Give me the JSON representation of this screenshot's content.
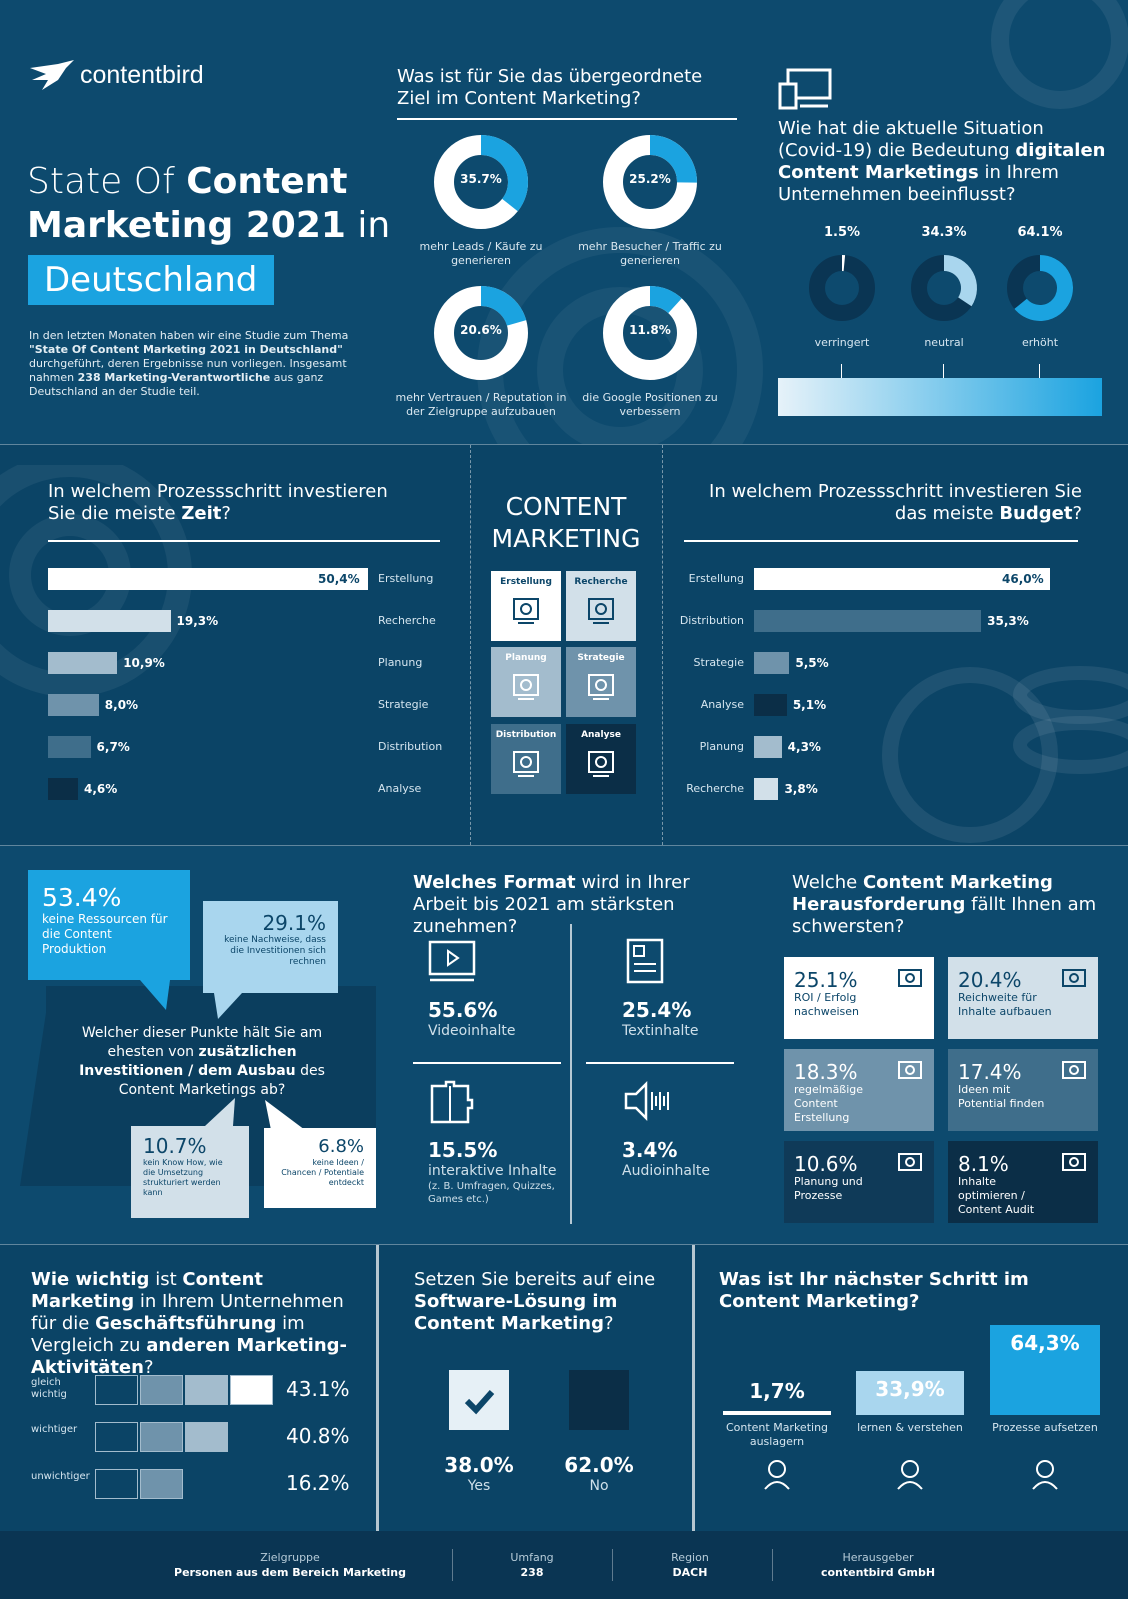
{
  "brand": {
    "name": "contentbird"
  },
  "hero": {
    "title_light": "State Of",
    "title_bold_1": "Content",
    "title_bold_2": "Marketing 2021",
    "title_light_2": "in",
    "title_box": "Deutschland",
    "intro_1": "In den letzten Monaten haben wir eine Studie zum Thema",
    "intro_bold": "\"State Of Content Marketing 2021 in Deutschland\"",
    "intro_2": "durchgeführt, deren Ergebnisse nun vorliegen. Insgesamt nahmen",
    "intro_bold_2": "238 Marketing-Verantwortliche",
    "intro_3": "aus ganz Deutschland an der Studie teil."
  },
  "goal": {
    "question": "Was ist für Sie das übergeordnete Ziel im Content Marketing?",
    "donuts": [
      {
        "value": "35.7%",
        "fraction": 0.357,
        "label": "mehr Leads / Käufe zu generieren"
      },
      {
        "value": "25.2%",
        "fraction": 0.252,
        "label": "mehr Besucher / Traffic zu generieren"
      },
      {
        "value": "20.6%",
        "fraction": 0.206,
        "label": "mehr Vertrauen / Reputation in der Zielgruppe aufzubauen"
      },
      {
        "value": "11.8%",
        "fraction": 0.118,
        "label": "die Google Positionen zu verbessern"
      }
    ]
  },
  "covid": {
    "q_1": "Wie hat die aktuelle Situation (Covid-19) die Bedeutung",
    "q_bold": "digitalen Content Marketings",
    "q_2": "in Ihrem Unternehmen beeinflusst?",
    "items": [
      {
        "value": "1.5%",
        "fraction": 0.015,
        "label": "verringert",
        "color": "#ffffff"
      },
      {
        "value": "34.3%",
        "fraction": 0.343,
        "label": "neutral",
        "color": "#a9d6ee"
      },
      {
        "value": "64.1%",
        "fraction": 0.641,
        "label": "erhöht",
        "color": "#1ba3e0"
      }
    ]
  },
  "time": {
    "q_1": "In welchem Prozessschritt investieren Sie die meiste",
    "q_bold": "Zeit",
    "q_end": "?",
    "bars": [
      {
        "value": "50,4%",
        "num": 50.4,
        "label": "Erstellung",
        "color": "#ffffff"
      },
      {
        "value": "19,3%",
        "num": 19.3,
        "label": "Recherche",
        "color": "#d2e0e9"
      },
      {
        "value": "10,9%",
        "num": 10.9,
        "label": "Planung",
        "color": "#a3bccd"
      },
      {
        "value": "8,0%",
        "num": 8.0,
        "label": "Strategie",
        "color": "#6f93ab"
      },
      {
        "value": "6,7%",
        "num": 6.7,
        "label": "Distribution",
        "color": "#3f6e8b"
      },
      {
        "value": "4,6%",
        "num": 4.6,
        "label": "Analyse",
        "color": "#0b2e47"
      }
    ]
  },
  "center": {
    "title_1": "CONTENT",
    "title_2": "MARKETING",
    "tiles": [
      {
        "label": "Erstellung",
        "icon": "hand-lightbulb-icon",
        "bg": "#ffffff",
        "fg": "#0c4669"
      },
      {
        "label": "Recherche",
        "icon": "magnifier-chart-icon",
        "bg": "#d2e0e9",
        "fg": "#0c4669"
      },
      {
        "label": "Planung",
        "icon": "calendar-clock-icon",
        "bg": "#a3bccd",
        "fg": "#ffffff"
      },
      {
        "label": "Strategie",
        "icon": "gear-brain-icon",
        "bg": "#6f93ab",
        "fg": "#ffffff"
      },
      {
        "label": "Distribution",
        "icon": "browser-mail-icon",
        "bg": "#3f6e8b",
        "fg": "#ffffff"
      },
      {
        "label": "Analyse",
        "icon": "presentation-chart-icon",
        "bg": "#0b2e47",
        "fg": "#ffffff"
      }
    ]
  },
  "budget": {
    "q_1": "In welchem Prozessschritt investieren Sie das meiste",
    "q_bold": "Budget",
    "q_end": "?",
    "bars": [
      {
        "value": "46,0%",
        "num": 46.0,
        "label": "Erstellung",
        "color": "#ffffff"
      },
      {
        "value": "35,3%",
        "num": 35.3,
        "label": "Distribution",
        "color": "#3f6e8b"
      },
      {
        "value": "5,5%",
        "num": 5.5,
        "label": "Strategie",
        "color": "#6f93ab"
      },
      {
        "value": "5,1%",
        "num": 5.1,
        "label": "Analyse",
        "color": "#0b2e47"
      },
      {
        "value": "4,3%",
        "num": 4.3,
        "label": "Planung",
        "color": "#a3bccd"
      },
      {
        "value": "3,8%",
        "num": 3.8,
        "label": "Recherche",
        "color": "#d2e0e9"
      }
    ]
  },
  "invest": {
    "q_1": "Welcher dieser Punkte hält Sie am ehesten von",
    "q_bold": "zusätzlichen Investitionen / dem Ausbau",
    "q_2": "des Content Marketings ab?",
    "b1_value": "53.4%",
    "b1_label": "keine Ressourcen für die Content Produktion",
    "b2_value": "29.1%",
    "b2_label": "keine Nachweise, dass die Investitionen sich rechnen",
    "b3_value": "10.7%",
    "b3_label": "kein Know How, wie die Umsetzung strukturiert werden kann",
    "b4_value": "6.8%",
    "b4_label": "keine Ideen / Chancen / Potentiale entdeckt"
  },
  "format": {
    "q_bold": "Welches Format",
    "q_2": "wird in Ihrer Arbeit bis 2021 am stärksten zunehmen?",
    "items": [
      {
        "value": "55.6%",
        "label": "Videoinhalte",
        "sub": "",
        "icon": "video-player-icon"
      },
      {
        "value": "25.4%",
        "label": "Textinhalte",
        "sub": "",
        "icon": "newspaper-icon"
      },
      {
        "value": "15.5%",
        "label": "interaktive Inhalte",
        "sub": "(z. B. Umfragen, Quizzes, Games etc.)",
        "icon": "puzzle-icon"
      },
      {
        "value": "3.4%",
        "label": "Audioinhalte",
        "sub": "",
        "icon": "speaker-sound-icon"
      }
    ]
  },
  "challenge": {
    "q_1": "Welche",
    "q_bold": "Content Marketing Herausforderung",
    "q_2": "fällt Ihnen am schwersten?",
    "items": [
      {
        "value": "25.1%",
        "label": "ROI / Erfolg nachweisen",
        "bg": "#ffffff",
        "fg": "#0c4669",
        "icon": "money-gear-icon"
      },
      {
        "value": "20.4%",
        "label": "Reichweite für Inhalte aufbauen",
        "bg": "#d2e0e9",
        "fg": "#0c4669",
        "icon": "dashboard-icon"
      },
      {
        "value": "18.3%",
        "label": "regelmäßige Content Erstellung",
        "bg": "#6f93ab",
        "fg": "#ffffff",
        "icon": "content-board-icon"
      },
      {
        "value": "17.4%",
        "label": "Ideen mit Potential finden",
        "bg": "#3f6e8b",
        "fg": "#ffffff",
        "icon": "lightbulb-icon"
      },
      {
        "value": "10.6%",
        "label": "Planung und Prozesse",
        "bg": "#0f3a58",
        "fg": "#ffffff",
        "icon": "process-icon"
      },
      {
        "value": "8.1%",
        "label": "Inhalte optimieren / Content Audit",
        "bg": "#0b2e47",
        "fg": "#ffffff",
        "icon": "search-gear-icon"
      }
    ]
  },
  "importance": {
    "q_bold_1": "Wie wichtig",
    "q_1": "ist",
    "q_bold_2": "Content Marketing",
    "q_2": "in Ihrem Unternehmen für die",
    "q_bold_3": "Geschäftsführung",
    "q_3": "im Vergleich zu",
    "q_bold_4": "anderen Marketing-Aktivitäten",
    "q_end": "?",
    "rows": [
      {
        "label": "gleich wichtig",
        "value": "43.1%",
        "filled": 4
      },
      {
        "label": "wichtiger",
        "value": "40.8%",
        "filled": 3
      },
      {
        "label": "unwichtiger",
        "value": "16.2%",
        "filled": 2
      }
    ]
  },
  "software": {
    "q_1": "Setzen Sie bereits auf eine",
    "q_bold": "Software-Lösung im Content Marketing",
    "q_end": "?",
    "yes_value": "38.0%",
    "yes_label": "Yes",
    "no_value": "62.0%",
    "no_label": "No"
  },
  "next": {
    "q": "Was ist Ihr nächster Schritt im Content Marketing?",
    "items": [
      {
        "value": "1,7%",
        "num": 1.7,
        "label": "Content Marketing auslagern",
        "icon": "person-icon"
      },
      {
        "value": "33,9%",
        "num": 33.9,
        "label": "lernen & verstehen",
        "icon": "book-icon"
      },
      {
        "value": "64,3%",
        "num": 64.3,
        "label": "Prozesse aufsetzen",
        "icon": "gear-bulb-icon"
      }
    ]
  },
  "footer": [
    {
      "label": "Zielgruppe",
      "value": "Personen aus dem Bereich Marketing"
    },
    {
      "label": "Umfang",
      "value": "238"
    },
    {
      "label": "Region",
      "value": "DACH"
    },
    {
      "label": "Herausgeber",
      "value": "contentbird GmbH"
    }
  ]
}
